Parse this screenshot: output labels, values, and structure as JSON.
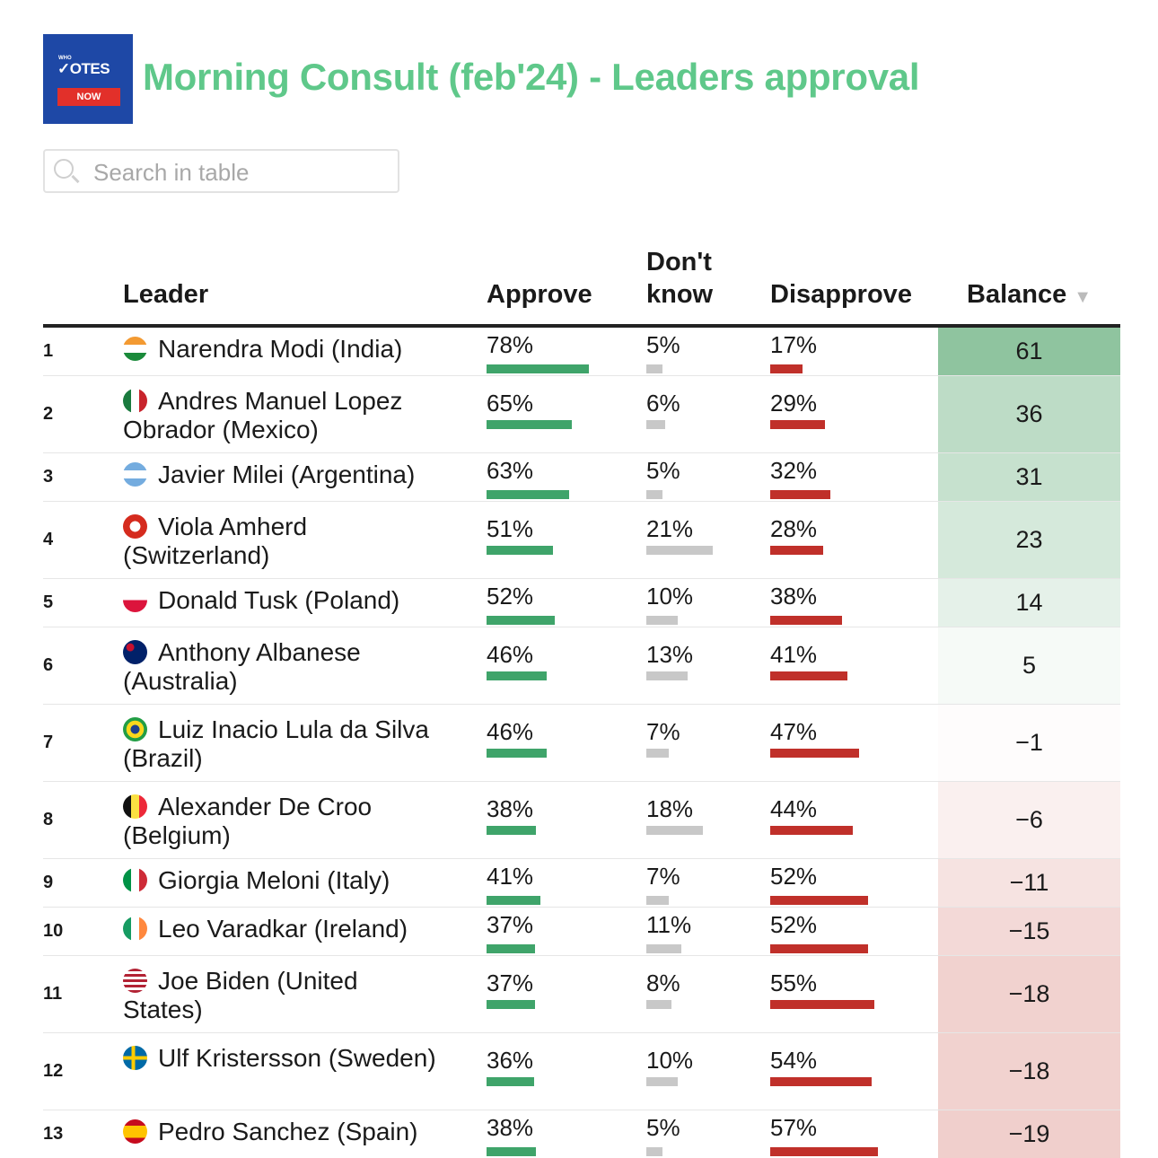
{
  "logo": {
    "top": "WHO",
    "main": "OTES",
    "bottom": "NOW"
  },
  "title": "Morning Consult (feb'24) - Leaders approval",
  "search": {
    "placeholder": "Search in table",
    "value": ""
  },
  "headers": {
    "leader": "Leader",
    "approve": "Approve",
    "dontknow": "Don't know",
    "disapprove": "Disapprove",
    "balance": "Balance",
    "sort_icon": "sort-desc-icon"
  },
  "colors": {
    "title": "#5fc88a",
    "approve_bar": "#3fa46a",
    "dontknow_bar": "#c8c8c8",
    "disapprove_bar": "#c0302a",
    "positive": "#8fc49f",
    "negative": "#f0cfcc"
  },
  "rows": [
    {
      "rank": "1",
      "leader": "Narendra Modi (India)",
      "flag": "india",
      "approve": "78%",
      "dontknow": "5%",
      "disapprove": "17%",
      "balance": "61"
    },
    {
      "rank": "2",
      "leader": "Andres Manuel Lopez Obrador (Mexico)",
      "flag": "mexico",
      "approve": "65%",
      "dontknow": "6%",
      "disapprove": "29%",
      "balance": "36"
    },
    {
      "rank": "3",
      "leader": "Javier Milei (Argentina)",
      "flag": "argentina",
      "approve": "63%",
      "dontknow": "5%",
      "disapprove": "32%",
      "balance": "31"
    },
    {
      "rank": "4",
      "leader": "Viola Amherd (Switzerland)",
      "flag": "switzerland",
      "approve": "51%",
      "dontknow": "21%",
      "disapprove": "28%",
      "balance": "23"
    },
    {
      "rank": "5",
      "leader": "Donald Tusk (Poland)",
      "flag": "poland",
      "approve": "52%",
      "dontknow": "10%",
      "disapprove": "38%",
      "balance": "14"
    },
    {
      "rank": "6",
      "leader": "Anthony Albanese (Australia)",
      "flag": "australia",
      "approve": "46%",
      "dontknow": "13%",
      "disapprove": "41%",
      "balance": "5"
    },
    {
      "rank": "7",
      "leader": "Luiz Inacio Lula da Silva (Brazil)",
      "flag": "brazil",
      "approve": "46%",
      "dontknow": "7%",
      "disapprove": "47%",
      "balance": "-1"
    },
    {
      "rank": "8",
      "leader": "Alexander De Croo (Belgium)",
      "flag": "belgium",
      "approve": "38%",
      "dontknow": "18%",
      "disapprove": "44%",
      "balance": "-6"
    },
    {
      "rank": "9",
      "leader": "Giorgia Meloni (Italy)",
      "flag": "italy",
      "approve": "41%",
      "dontknow": "7%",
      "disapprove": "52%",
      "balance": "-11"
    },
    {
      "rank": "10",
      "leader": "Leo Varadkar (Ireland)",
      "flag": "ireland",
      "approve": "37%",
      "dontknow": "11%",
      "disapprove": "52%",
      "balance": "-15"
    },
    {
      "rank": "11",
      "leader": "Joe Biden (United States)",
      "flag": "usa",
      "approve": "37%",
      "dontknow": "8%",
      "disapprove": "55%",
      "balance": "-18"
    },
    {
      "rank": "12",
      "leader": "Ulf Kristersson (Sweden)",
      "flag": "sweden",
      "approve": "36%",
      "dontknow": "10%",
      "disapprove": "54%",
      "balance": "-18"
    },
    {
      "rank": "13",
      "leader": "Pedro Sanchez (Spain)",
      "flag": "spain",
      "approve": "38%",
      "dontknow": "5%",
      "disapprove": "57%",
      "balance": "-19"
    }
  ]
}
